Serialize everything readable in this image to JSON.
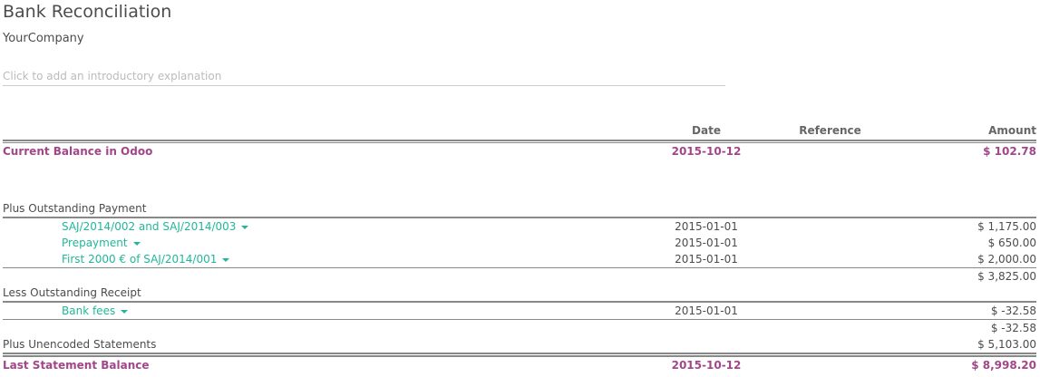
{
  "title": "Bank Reconciliation",
  "company": "YourCompany",
  "intro_placeholder": "Click to add an introductory explanation",
  "columns": {
    "date": "Date",
    "reference": "Reference",
    "amount": "Amount"
  },
  "colors": {
    "balance": "#a24689",
    "link": "#21b799"
  },
  "current_balance": {
    "label": "Current Balance in Odoo",
    "date": "2015-10-12",
    "amount": "$ 102.78"
  },
  "outstanding_payment": {
    "label": "Plus Outstanding Payment",
    "items": [
      {
        "label": "SAJ/2014/002 and SAJ/2014/003",
        "date": "2015-01-01",
        "amount": "$ 1,175.00"
      },
      {
        "label": "Prepayment",
        "date": "2015-01-01",
        "amount": "$ 650.00"
      },
      {
        "label": "First 2000 € of SAJ/2014/001",
        "date": "2015-01-01",
        "amount": "$ 2,000.00"
      }
    ],
    "total": "$ 3,825.00"
  },
  "outstanding_receipt": {
    "label": "Less Outstanding Receipt",
    "items": [
      {
        "label": "Bank fees",
        "date": "2015-01-01",
        "amount": "$ -32.58"
      }
    ],
    "total": "$ -32.58"
  },
  "unencoded": {
    "label": "Plus Unencoded Statements",
    "amount": "$ 5,103.00"
  },
  "last_balance": {
    "label": "Last Statement Balance",
    "date": "2015-10-12",
    "amount": "$ 8,998.20"
  }
}
